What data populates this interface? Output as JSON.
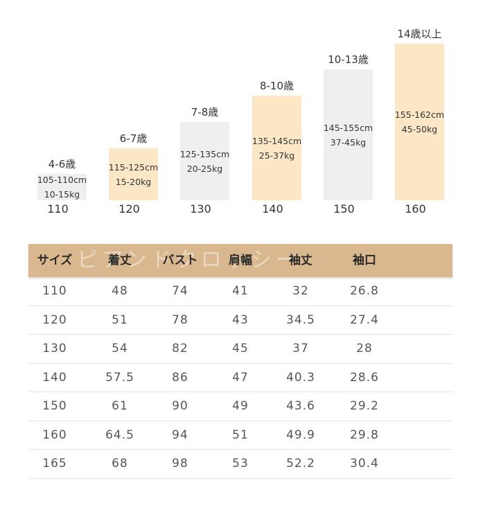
{
  "chart_data": {
    "type": "bar",
    "categories": [
      "110",
      "120",
      "130",
      "140",
      "150",
      "160"
    ],
    "age_labels": [
      "4-6歳",
      "6-7歳",
      "7-8歳",
      "8-10歳",
      "10-13歳",
      "14歳以上"
    ],
    "height_ranges": [
      "105-110cm",
      "115-125cm",
      "125-135cm",
      "135-145cm",
      "145-155cm",
      "155-162cm"
    ],
    "weight_ranges": [
      "10-15kg",
      "15-20kg",
      "20-25kg",
      "25-37kg",
      "37-45kg",
      "45-50kg"
    ],
    "values": [
      110,
      120,
      130,
      140,
      150,
      160
    ],
    "bar_colors": [
      "#efefef",
      "#fbe7c6",
      "#efefef",
      "#fbe7c6",
      "#efefef",
      "#fbe7c6"
    ]
  },
  "table": {
    "watermark": "ピアンドクロッシー",
    "headers": [
      "サイズ",
      "着丈",
      "バスト",
      "肩幅",
      "袖丈",
      "袖口"
    ],
    "rows": [
      [
        "110",
        "48",
        "74",
        "41",
        "32",
        "26.8"
      ],
      [
        "120",
        "51",
        "78",
        "43",
        "34.5",
        "27.4"
      ],
      [
        "130",
        "54",
        "82",
        "45",
        "37",
        "28"
      ],
      [
        "140",
        "57.5",
        "86",
        "47",
        "40.3",
        "28.6"
      ],
      [
        "150",
        "61",
        "90",
        "49",
        "43.6",
        "29.2"
      ],
      [
        "160",
        "64.5",
        "94",
        "51",
        "49.9",
        "29.8"
      ],
      [
        "165",
        "68",
        "98",
        "53",
        "52.2",
        "30.4"
      ]
    ]
  },
  "colors": {
    "header_bg": "#d9b88f",
    "accent_bar": "#fbe7c6",
    "plain_bar": "#efefef"
  }
}
